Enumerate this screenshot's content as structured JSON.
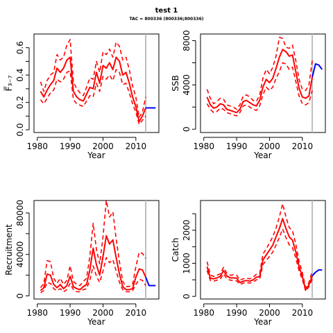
{
  "page": {
    "title": "test 1",
    "subtitle": "TAC = 800336 (800336;800336)"
  },
  "colors": {
    "history": "#ff0000",
    "projection": "#0000ff",
    "marker": "#bebebe",
    "axis": "#000000"
  },
  "chart_data": [
    {
      "type": "line",
      "name": "fbar",
      "xlabel": "Year",
      "ylabel": "F̅₃₋₇",
      "xlim": [
        1979,
        2017
      ],
      "ylim": [
        -0.02,
        0.7
      ],
      "xticks": [
        1980,
        1990,
        2000,
        2010
      ],
      "yticks": [
        0.0,
        0.1,
        0.2,
        0.3,
        0.4,
        0.5,
        0.6
      ],
      "ytick_labels": [
        "0.0",
        "",
        "0.2",
        "",
        "0.4",
        "",
        "0.6"
      ],
      "marker_x": 2013,
      "series": [
        {
          "role": "estimate",
          "x": [
            1981,
            1982,
            1983,
            1984,
            1985,
            1986,
            1987,
            1988,
            1989,
            1990,
            1991,
            1992,
            1993,
            1994,
            1995,
            1996,
            1997,
            1998,
            1999,
            2000,
            2001,
            2002,
            2003,
            2004,
            2005,
            2006,
            2007,
            2008,
            2009,
            2010,
            2011,
            2012,
            2013
          ],
          "values": [
            0.28,
            0.24,
            0.29,
            0.33,
            0.36,
            0.45,
            0.42,
            0.45,
            0.51,
            0.53,
            0.28,
            0.24,
            0.22,
            0.21,
            0.26,
            0.31,
            0.3,
            0.42,
            0.34,
            0.47,
            0.45,
            0.49,
            0.44,
            0.53,
            0.5,
            0.4,
            0.42,
            0.34,
            0.24,
            0.17,
            0.06,
            0.1,
            0.16
          ]
        },
        {
          "role": "upper",
          "x": [
            1981,
            1982,
            1983,
            1984,
            1985,
            1986,
            1987,
            1988,
            1989,
            1990,
            1991,
            1992,
            1993,
            1994,
            1995,
            1996,
            1997,
            1998,
            1999,
            2000,
            2001,
            2002,
            2003,
            2004,
            2005,
            2006,
            2007,
            2008,
            2009,
            2010,
            2011,
            2012,
            2013
          ],
          "values": [
            0.35,
            0.28,
            0.36,
            0.4,
            0.42,
            0.55,
            0.51,
            0.53,
            0.62,
            0.66,
            0.35,
            0.3,
            0.27,
            0.25,
            0.31,
            0.38,
            0.37,
            0.5,
            0.42,
            0.57,
            0.55,
            0.59,
            0.53,
            0.64,
            0.61,
            0.51,
            0.53,
            0.44,
            0.32,
            0.24,
            0.09,
            0.13,
            0.24
          ]
        },
        {
          "role": "lower",
          "x": [
            1981,
            1982,
            1983,
            1984,
            1985,
            1986,
            1987,
            1988,
            1989,
            1990,
            1991,
            1992,
            1993,
            1994,
            1995,
            1996,
            1997,
            1998,
            1999,
            2000,
            2001,
            2002,
            2003,
            2004,
            2005,
            2006,
            2007,
            2008,
            2009,
            2010,
            2011,
            2012,
            2013
          ],
          "values": [
            0.22,
            0.19,
            0.23,
            0.27,
            0.29,
            0.37,
            0.35,
            0.37,
            0.42,
            0.43,
            0.22,
            0.19,
            0.18,
            0.17,
            0.21,
            0.25,
            0.24,
            0.34,
            0.28,
            0.39,
            0.37,
            0.4,
            0.36,
            0.44,
            0.42,
            0.33,
            0.34,
            0.27,
            0.19,
            0.13,
            0.04,
            0.07,
            0.1
          ]
        },
        {
          "role": "projection",
          "x": [
            2013,
            2014,
            2015,
            2016
          ],
          "values": [
            0.16,
            0.16,
            0.16,
            0.16
          ]
        }
      ]
    },
    {
      "type": "line",
      "name": "ssb",
      "xlabel": "Year",
      "ylabel": "SSB",
      "xlim": [
        1979,
        2017
      ],
      "ylim": [
        -300,
        8600
      ],
      "xticks": [
        1980,
        1990,
        2000,
        2010
      ],
      "yticks": [
        0,
        2000,
        4000,
        6000,
        8000
      ],
      "ytick_labels": [
        "0",
        "",
        "4000",
        "",
        "8000"
      ],
      "marker_x": 2013,
      "series": [
        {
          "role": "estimate",
          "x": [
            1981,
            1982,
            1983,
            1984,
            1985,
            1986,
            1987,
            1988,
            1989,
            1990,
            1991,
            1992,
            1993,
            1994,
            1995,
            1996,
            1997,
            1998,
            1999,
            2000,
            2001,
            2002,
            2003,
            2004,
            2005,
            2006,
            2007,
            2008,
            2009,
            2010,
            2011,
            2012,
            2013
          ],
          "values": [
            2900,
            2200,
            1900,
            2000,
            2300,
            2200,
            1800,
            1700,
            1600,
            1500,
            1800,
            2500,
            2600,
            2400,
            2200,
            2100,
            2600,
            3800,
            4500,
            4200,
            4600,
            5500,
            6500,
            7200,
            7000,
            6600,
            6700,
            5200,
            3700,
            2900,
            2800,
            3000,
            4700
          ]
        },
        {
          "role": "upper",
          "x": [
            1981,
            1982,
            1983,
            1984,
            1985,
            1986,
            1987,
            1988,
            1989,
            1990,
            1991,
            1992,
            1993,
            1994,
            1995,
            1996,
            1997,
            1998,
            1999,
            2000,
            2001,
            2002,
            2003,
            2004,
            2005,
            2006,
            2007,
            2008,
            2009,
            2010,
            2011,
            2012,
            2013
          ],
          "values": [
            3600,
            2800,
            2300,
            2500,
            2800,
            2700,
            2200,
            2100,
            2000,
            1800,
            2200,
            3000,
            3100,
            2900,
            2600,
            2500,
            3100,
            4600,
            5400,
            5000,
            5600,
            6600,
            8300,
            8200,
            7400,
            7300,
            7600,
            6200,
            4500,
            3600,
            3500,
            4000,
            6200
          ]
        },
        {
          "role": "lower",
          "x": [
            1981,
            1982,
            1983,
            1984,
            1985,
            1986,
            1987,
            1988,
            1989,
            1990,
            1991,
            1992,
            1993,
            1994,
            1995,
            1996,
            1997,
            1998,
            1999,
            2000,
            2001,
            2002,
            2003,
            2004,
            2005,
            2006,
            2007,
            2008,
            2009,
            2010,
            2011,
            2012,
            2013
          ],
          "values": [
            2300,
            1800,
            1500,
            1600,
            1900,
            1800,
            1500,
            1400,
            1300,
            1200,
            1500,
            2100,
            2200,
            2000,
            1800,
            1700,
            2100,
            3100,
            3800,
            3500,
            3800,
            4600,
            5200,
            6000,
            5900,
            5400,
            5600,
            4300,
            3000,
            2300,
            2200,
            2400,
            3500
          ]
        },
        {
          "role": "projection",
          "x": [
            2013,
            2014,
            2015,
            2016
          ],
          "values": [
            4700,
            5900,
            5800,
            5400
          ]
        }
      ]
    },
    {
      "type": "line",
      "name": "recruitment",
      "xlabel": "Year",
      "ylabel": "Recruitment",
      "xlim": [
        1979,
        2017
      ],
      "ylim": [
        -3000,
        92000
      ],
      "xticks": [
        1980,
        1990,
        2000,
        2010
      ],
      "yticks": [
        0,
        20000,
        40000,
        60000,
        80000
      ],
      "ytick_labels": [
        "0",
        "",
        "40000",
        "",
        "80000"
      ],
      "marker_x": 2013,
      "series": [
        {
          "role": "estimate",
          "x": [
            1981,
            1982,
            1983,
            1984,
            1985,
            1986,
            1987,
            1988,
            1989,
            1990,
            1991,
            1992,
            1993,
            1994,
            1995,
            1996,
            1997,
            1998,
            1999,
            2000,
            2001,
            2002,
            2003,
            2004,
            2005,
            2006,
            2007,
            2008,
            2009,
            2010,
            2011,
            2012,
            2013
          ],
          "values": [
            5000,
            8000,
            21000,
            20000,
            11000,
            8000,
            11000,
            7000,
            10000,
            19000,
            9000,
            7000,
            6000,
            9000,
            11000,
            25000,
            46000,
            30000,
            20000,
            38000,
            58000,
            50000,
            54000,
            37000,
            21000,
            9000,
            6000,
            6000,
            7000,
            18000,
            26000,
            25000,
            18000
          ]
        },
        {
          "role": "upper",
          "x": [
            1981,
            1982,
            1983,
            1984,
            1985,
            1986,
            1987,
            1988,
            1989,
            1990,
            1991,
            1992,
            1993,
            1994,
            1995,
            1996,
            1997,
            1998,
            1999,
            2000,
            2001,
            2002,
            2003,
            2004,
            2005,
            2006,
            2007,
            2008,
            2009,
            2010,
            2011,
            2012,
            2013
          ],
          "values": [
            8000,
            12000,
            34000,
            33000,
            17000,
            12000,
            17000,
            11000,
            15000,
            29000,
            14000,
            11000,
            10000,
            14000,
            17000,
            38000,
            70000,
            45000,
            31000,
            57000,
            92000,
            76000,
            81000,
            55000,
            33000,
            14000,
            9000,
            9000,
            11000,
            28000,
            42000,
            41000,
            36000
          ]
        },
        {
          "role": "lower",
          "x": [
            1981,
            1982,
            1983,
            1984,
            1985,
            1986,
            1987,
            1988,
            1989,
            1990,
            1991,
            1992,
            1993,
            1994,
            1995,
            1996,
            1997,
            1998,
            1999,
            2000,
            2001,
            2002,
            2003,
            2004,
            2005,
            2006,
            2007,
            2008,
            2009,
            2010,
            2011,
            2012,
            2013
          ],
          "values": [
            3000,
            5000,
            13000,
            12000,
            7000,
            5000,
            7000,
            4000,
            6000,
            12000,
            6000,
            4000,
            4000,
            6000,
            7000,
            15000,
            29000,
            19000,
            13000,
            24000,
            37000,
            32000,
            35000,
            24000,
            13000,
            6000,
            4000,
            4000,
            5000,
            11000,
            16000,
            15000,
            10000
          ]
        },
        {
          "role": "projection",
          "x": [
            2013,
            2014,
            2015,
            2016
          ],
          "values": [
            18000,
            10000,
            10000,
            10000
          ]
        }
      ]
    },
    {
      "type": "line",
      "name": "catch",
      "xlabel": "Year",
      "ylabel": "Catch",
      "xlim": [
        1979,
        2017
      ],
      "ylim": [
        -80,
        2900
      ],
      "xticks": [
        1980,
        1990,
        2000,
        2010
      ],
      "yticks": [
        0,
        500,
        1000,
        1500,
        2000,
        2500
      ],
      "ytick_labels": [
        "0",
        "",
        "1000",
        "",
        "2000",
        ""
      ],
      "marker_x": 2013,
      "series": [
        {
          "role": "estimate",
          "x": [
            1981,
            1982,
            1983,
            1984,
            1985,
            1986,
            1987,
            1988,
            1989,
            1990,
            1991,
            1992,
            1993,
            1994,
            1995,
            1996,
            1997,
            1998,
            1999,
            2000,
            2001,
            2002,
            2003,
            2004,
            2005,
            2006,
            2007,
            2008,
            2009,
            2010,
            2011,
            2012,
            2013
          ],
          "values": [
            900,
            550,
            530,
            560,
            600,
            780,
            620,
            560,
            560,
            550,
            420,
            460,
            480,
            460,
            500,
            580,
            600,
            1100,
            1250,
            1400,
            1550,
            1800,
            2050,
            2350,
            2050,
            1800,
            1700,
            1350,
            900,
            600,
            200,
            350,
            620
          ]
        },
        {
          "role": "upper",
          "x": [
            1981,
            1982,
            1983,
            1984,
            1985,
            1986,
            1987,
            1988,
            1989,
            1990,
            1991,
            1992,
            1993,
            1994,
            1995,
            1996,
            1997,
            1998,
            1999,
            2000,
            2001,
            2002,
            2003,
            2004,
            2005,
            2006,
            2007,
            2008,
            2009,
            2010,
            2011,
            2012,
            2013
          ],
          "values": [
            1050,
            650,
            600,
            640,
            680,
            880,
            700,
            640,
            650,
            640,
            490,
            530,
            550,
            530,
            580,
            670,
            690,
            1280,
            1430,
            1620,
            1800,
            2070,
            2400,
            2800,
            2400,
            2080,
            1980,
            1580,
            1060,
            720,
            260,
            420,
            760
          ]
        },
        {
          "role": "lower",
          "x": [
            1981,
            1982,
            1983,
            1984,
            1985,
            1986,
            1987,
            1988,
            1989,
            1990,
            1991,
            1992,
            1993,
            1994,
            1995,
            1996,
            1997,
            1998,
            1999,
            2000,
            2001,
            2002,
            2003,
            2004,
            2005,
            2006,
            2007,
            2008,
            2009,
            2010,
            2011,
            2012,
            2013
          ],
          "values": [
            780,
            480,
            460,
            490,
            520,
            680,
            540,
            490,
            480,
            470,
            360,
            400,
            420,
            400,
            430,
            500,
            520,
            960,
            1080,
            1210,
            1340,
            1550,
            1780,
            2040,
            1780,
            1560,
            1470,
            1160,
            770,
            510,
            160,
            290,
            520
          ]
        },
        {
          "role": "projection",
          "x": [
            2013,
            2014,
            2015,
            2016
          ],
          "values": [
            620,
            730,
            800,
            800
          ]
        }
      ]
    }
  ]
}
